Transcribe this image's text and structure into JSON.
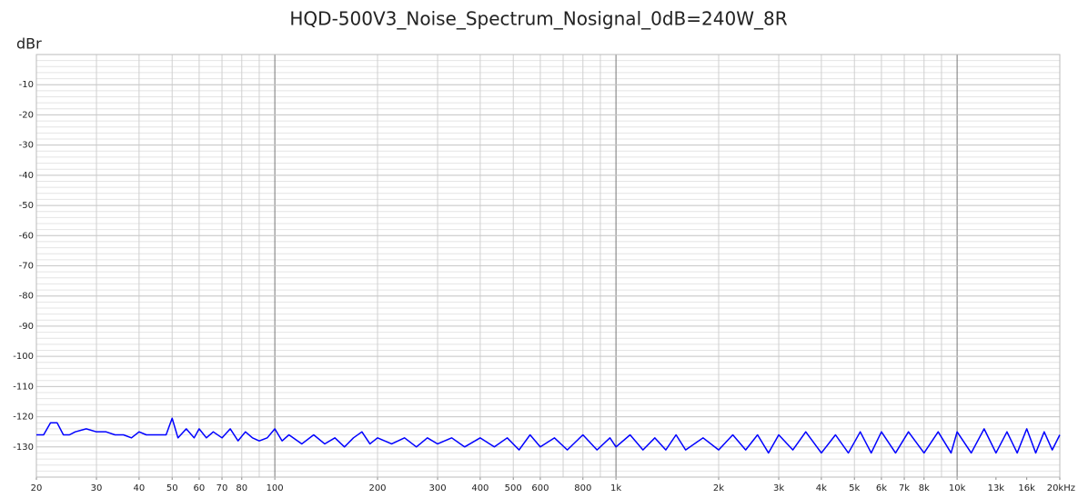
{
  "chart_data": {
    "type": "line",
    "title": "HQD-500V3_Noise_Spectrum_Nosignal_0dB=240W_8R",
    "y_label": "dBr",
    "x_scale": "log",
    "grid": true,
    "xlim": [
      20,
      20000
    ],
    "ylim": [
      -140,
      0
    ],
    "xticks": [
      20,
      30,
      40,
      50,
      60,
      70,
      80,
      100,
      200,
      300,
      400,
      500,
      600,
      800,
      {
        "value": 1000,
        "label": "1k"
      },
      {
        "value": 2000,
        "label": "2k"
      },
      {
        "value": 3000,
        "label": "3k"
      },
      {
        "value": 4000,
        "label": "4k"
      },
      {
        "value": 5000,
        "label": "5k"
      },
      {
        "value": 6000,
        "label": "6k"
      },
      {
        "value": 7000,
        "label": "7k"
      },
      {
        "value": 8000,
        "label": "8k"
      },
      {
        "value": 10000,
        "label": "10k"
      },
      {
        "value": 13000,
        "label": "13k"
      },
      {
        "value": 16000,
        "label": "16k"
      },
      {
        "value": 20000,
        "label": "20kHz"
      }
    ],
    "yticks": [
      -10,
      -20,
      -30,
      -40,
      -50,
      -60,
      -70,
      -80,
      -90,
      -100,
      -110,
      -120,
      -130
    ],
    "series": [
      {
        "color": "#0000ff",
        "x": [
          20,
          21,
          22,
          23,
          24,
          25,
          26,
          28,
          30,
          32,
          34,
          36,
          38,
          40,
          42,
          45,
          48,
          50,
          52,
          55,
          58,
          60,
          63,
          66,
          70,
          74,
          78,
          82,
          86,
          90,
          95,
          100,
          105,
          110,
          120,
          130,
          140,
          150,
          160,
          170,
          180,
          190,
          200,
          220,
          240,
          260,
          280,
          300,
          330,
          360,
          400,
          440,
          480,
          520,
          560,
          600,
          660,
          720,
          800,
          880,
          960,
          1000,
          1100,
          1200,
          1300,
          1400,
          1500,
          1600,
          1800,
          2000,
          2200,
          2400,
          2600,
          2800,
          3000,
          3300,
          3600,
          4000,
          4400,
          4800,
          5200,
          5600,
          6000,
          6600,
          7200,
          8000,
          8800,
          9600,
          10000,
          11000,
          12000,
          13000,
          14000,
          15000,
          16000,
          17000,
          18000,
          19000,
          20000
        ],
        "values": [
          -126,
          -126,
          -122,
          -122,
          -126,
          -126,
          -125,
          -124,
          -125,
          -125,
          -126,
          -126,
          -127,
          -125,
          -126,
          -126,
          -126,
          -120.5,
          -127,
          -124,
          -127,
          -124,
          -127,
          -125,
          -127,
          -124,
          -128,
          -125,
          -127,
          -128,
          -127,
          -124,
          -128,
          -126,
          -129,
          -126,
          -129,
          -127,
          -130,
          -127,
          -125,
          -129,
          -127,
          -129,
          -127,
          -130,
          -127,
          -129,
          -127,
          -130,
          -127,
          -130,
          -127,
          -131,
          -126,
          -130,
          -127,
          -131,
          -126,
          -131,
          -127,
          -130,
          -126,
          -131,
          -127,
          -131,
          -126,
          -131,
          -127,
          -131,
          -126,
          -131,
          -126,
          -132,
          -126,
          -131,
          -125,
          -132,
          -126,
          -132,
          -125,
          -132,
          -125,
          -132,
          -125,
          -132,
          -125,
          -132,
          -125,
          -132,
          -124,
          -132,
          -125,
          -132,
          -124,
          -132,
          -125,
          -131,
          -126
        ]
      }
    ]
  }
}
